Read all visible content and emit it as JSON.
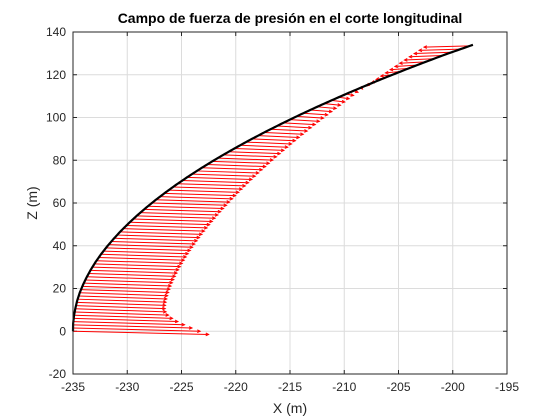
{
  "chart_data": {
    "type": "quiver",
    "title": "Campo de fuerza de presión en el corte longitudinal",
    "xlabel": "X (m)",
    "ylabel": "Z (m)",
    "xlim": [
      -235,
      -195
    ],
    "ylim": [
      -20,
      140
    ],
    "xticks": [
      -235,
      -230,
      -225,
      -220,
      -215,
      -210,
      -205,
      -200,
      -195
    ],
    "yticks": [
      -20,
      0,
      20,
      40,
      60,
      80,
      100,
      120,
      140
    ],
    "grid": true,
    "profile": {
      "color": "#000000",
      "x": [
        -235.0,
        -234.99,
        -234.91,
        -234.78,
        -234.61,
        -234.38,
        -234.09,
        -233.75,
        -233.36,
        -232.92,
        -232.42,
        -231.87,
        -231.26,
        -230.61,
        -229.89,
        -229.13,
        -228.31,
        -227.44,
        -226.51,
        -225.53,
        -224.49,
        -223.4,
        -222.26,
        -221.06,
        -219.81,
        -218.51,
        -217.15,
        -215.74,
        -214.28,
        -212.76,
        -211.18,
        -209.56,
        -207.88,
        -206.15,
        -204.36,
        -202.52,
        -200.62,
        -200.0
      ],
      "z": [
        0.0,
        3.6,
        7.2,
        10.8,
        14.4,
        18.0,
        21.6,
        25.2,
        28.8,
        32.4,
        36.0,
        39.6,
        43.2,
        46.8,
        50.4,
        54.0,
        57.6,
        61.2,
        64.8,
        68.4,
        72.0,
        75.6,
        79.2,
        82.8,
        86.4,
        90.0,
        93.6,
        97.2,
        100.8,
        104.4,
        108.0,
        111.6,
        115.2,
        118.8,
        122.4,
        126.0,
        129.6,
        130.7
      ]
    },
    "force_vectors": {
      "color": "#ff0000",
      "z_start": 0,
      "z_end": 134,
      "z_step": 1.5,
      "tip_x_at_base": -222.5,
      "tip_x_min": -226.5,
      "tip_x_min_at_z": 12,
      "tip_x_at_top": -202.5,
      "tip_z_offset": -1.5
    }
  }
}
